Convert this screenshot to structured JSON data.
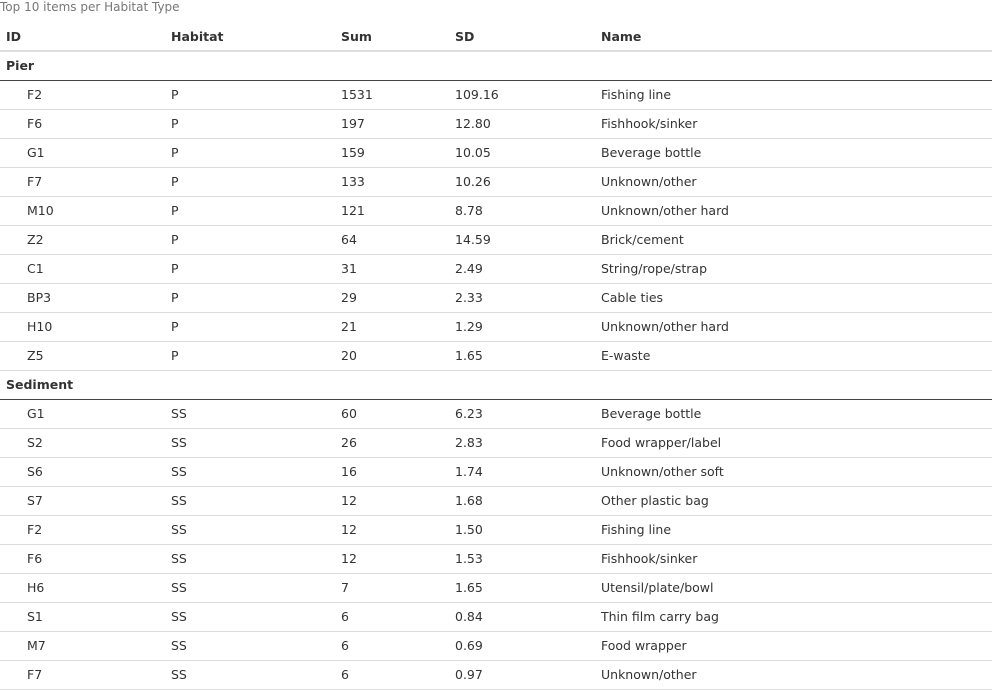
{
  "caption": "Top 10 items per Habitat Type",
  "columns": {
    "id": "ID",
    "habitat": "Habitat",
    "sum": "Sum",
    "sd": "SD",
    "name": "Name"
  },
  "groups": [
    {
      "label": "Pier",
      "rows": [
        {
          "id": "F2",
          "habitat": "P",
          "sum": "1531",
          "sd": "109.16",
          "name": "Fishing line"
        },
        {
          "id": "F6",
          "habitat": "P",
          "sum": "197",
          "sd": "12.80",
          "name": "Fishhook/sinker"
        },
        {
          "id": "G1",
          "habitat": "P",
          "sum": "159",
          "sd": "10.05",
          "name": "Beverage bottle"
        },
        {
          "id": "F7",
          "habitat": "P",
          "sum": "133",
          "sd": "10.26",
          "name": "Unknown/other"
        },
        {
          "id": "M10",
          "habitat": "P",
          "sum": "121",
          "sd": "8.78",
          "name": "Unknown/other hard"
        },
        {
          "id": "Z2",
          "habitat": "P",
          "sum": "64",
          "sd": "14.59",
          "name": "Brick/cement"
        },
        {
          "id": "C1",
          "habitat": "P",
          "sum": "31",
          "sd": "2.49",
          "name": "String/rope/strap"
        },
        {
          "id": "BP3",
          "habitat": "P",
          "sum": "29",
          "sd": "2.33",
          "name": "Cable ties"
        },
        {
          "id": "H10",
          "habitat": "P",
          "sum": "21",
          "sd": "1.29",
          "name": "Unknown/other hard"
        },
        {
          "id": "Z5",
          "habitat": "P",
          "sum": "20",
          "sd": "1.65",
          "name": "E-waste"
        }
      ]
    },
    {
      "label": "Sediment",
      "rows": [
        {
          "id": "G1",
          "habitat": "SS",
          "sum": "60",
          "sd": "6.23",
          "name": "Beverage bottle"
        },
        {
          "id": "S2",
          "habitat": "SS",
          "sum": "26",
          "sd": "2.83",
          "name": "Food wrapper/label"
        },
        {
          "id": "S6",
          "habitat": "SS",
          "sum": "16",
          "sd": "1.74",
          "name": "Unknown/other soft"
        },
        {
          "id": "S7",
          "habitat": "SS",
          "sum": "12",
          "sd": "1.68",
          "name": "Other plastic bag"
        },
        {
          "id": "F2",
          "habitat": "SS",
          "sum": "12",
          "sd": "1.50",
          "name": "Fishing line"
        },
        {
          "id": "F6",
          "habitat": "SS",
          "sum": "12",
          "sd": "1.53",
          "name": "Fishhook/sinker"
        },
        {
          "id": "H6",
          "habitat": "SS",
          "sum": "7",
          "sd": "1.65",
          "name": "Utensil/plate/bowl"
        },
        {
          "id": "S1",
          "habitat": "SS",
          "sum": "6",
          "sd": "0.84",
          "name": "Thin film carry bag"
        },
        {
          "id": "M7",
          "habitat": "SS",
          "sum": "6",
          "sd": "0.69",
          "name": "Food wrapper"
        },
        {
          "id": "F7",
          "habitat": "SS",
          "sum": "6",
          "sd": "0.97",
          "name": "Unknown/other"
        }
      ]
    }
  ]
}
